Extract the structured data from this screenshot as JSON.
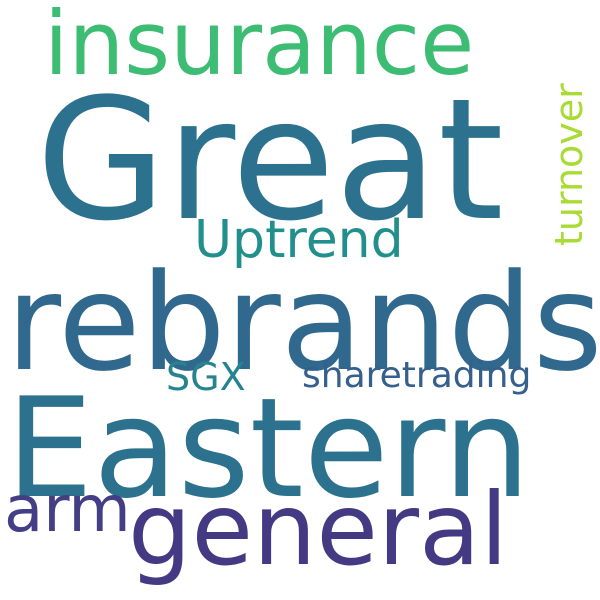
{
  "words": [
    {
      "key": "great",
      "text": "Great",
      "color": "#2c728e"
    },
    {
      "key": "eastern",
      "text": "Eastern",
      "color": "#2c728e"
    },
    {
      "key": "rebrands",
      "text": "rebrands",
      "color": "#31688e"
    },
    {
      "key": "insurance",
      "text": "insurance",
      "color": "#3dbc74"
    },
    {
      "key": "general",
      "text": "general",
      "color": "#443983"
    },
    {
      "key": "arm",
      "text": "arm",
      "color": "#433e85"
    },
    {
      "key": "uptrend",
      "text": "Uptrend",
      "color": "#21908d"
    },
    {
      "key": "turnover",
      "text": "turnover",
      "color": "#a8db34"
    },
    {
      "key": "sharetrading",
      "text": "sharetrading",
      "color": "#355f8d"
    },
    {
      "key": "sgx",
      "text": "SGX",
      "color": "#25848e"
    }
  ]
}
